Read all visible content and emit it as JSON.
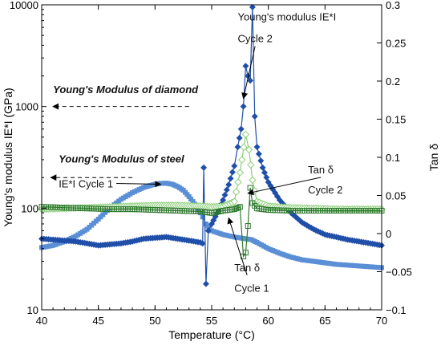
{
  "chart_data": {
    "type": "scatter",
    "xlabel": "Temperature (°C)",
    "ylabel_left": "Young's modulus IE*I (GPa)",
    "ylabel_right": "Tan δ",
    "xlim": [
      40,
      70
    ],
    "ylim_left": [
      10,
      10000
    ],
    "ylim_right": [
      -0.1,
      0.3
    ],
    "yscale_left": "log",
    "x_ticks": [
      40,
      45,
      50,
      55,
      60,
      65,
      70
    ],
    "y_ticks_left": [
      10,
      100,
      1000,
      10000
    ],
    "y_ticks_right": [
      -0.1,
      -0.05,
      0,
      0.05,
      0.1,
      0.15,
      0.2,
      0.25,
      0.3
    ],
    "x_tick_labels": [
      "40",
      "45",
      "50",
      "55",
      "60",
      "65",
      "70"
    ],
    "y_tick_labels_left": [
      "10",
      "100",
      "1000",
      "10000"
    ],
    "y_tick_labels_right": [
      "−0.1",
      "−0.05",
      "0",
      "0.05",
      "0.1",
      "0.15",
      "0.2",
      "0.25",
      "0.3"
    ],
    "colors": {
      "modulus_cycle1": "#5a8fd6",
      "modulus_cycle2": "#1f4fa8",
      "tan_cycle1": "#8ccf7a",
      "tan_cycle2": "#2f7a2f"
    },
    "series": [
      {
        "name": "IE*I Cycle 1",
        "axis": "left",
        "marker": "square",
        "x": [
          40,
          41,
          42,
          43,
          44,
          45,
          46,
          47,
          48,
          49,
          50,
          50.5,
          51,
          51.5,
          52,
          52.5,
          53,
          53.5,
          54,
          54.2,
          54.5,
          55,
          56,
          57,
          58,
          58.5,
          59,
          60,
          61,
          62,
          63,
          64,
          65,
          66,
          67,
          68,
          69,
          70
        ],
        "y": [
          41,
          43,
          47,
          53,
          62,
          78,
          100,
          122,
          142,
          160,
          172,
          175,
          176,
          172,
          163,
          150,
          130,
          110,
          90,
          82,
          70,
          60,
          55,
          52,
          50,
          49,
          46,
          40,
          36,
          33,
          31,
          30,
          29,
          28,
          27.5,
          27,
          26.5,
          26
        ]
      },
      {
        "name": "Young's modulus IE*I Cycle 2",
        "axis": "left",
        "marker": "diamond",
        "x": [
          40,
          41,
          42,
          43,
          44,
          45,
          46,
          47,
          48,
          49,
          50,
          51,
          52,
          53,
          54,
          54.2,
          54.3,
          54.5,
          54.7,
          55,
          55.5,
          56,
          56.5,
          57,
          57.3,
          57.6,
          57.8,
          58,
          58.2,
          58.4,
          58.6,
          58.8,
          59,
          59.5,
          60,
          61,
          62,
          63,
          64,
          65,
          66,
          67,
          68,
          69,
          70
        ],
        "y": [
          50,
          49,
          48,
          47,
          45,
          43,
          44,
          45,
          47,
          50,
          51,
          52,
          50,
          48,
          46,
          45,
          250,
          18,
          60,
          70,
          90,
          120,
          170,
          260,
          400,
          600,
          1000,
          2500,
          2000,
          1800,
          9500,
          800,
          400,
          250,
          180,
          120,
          90,
          72,
          62,
          55,
          52,
          49,
          47,
          45,
          43
        ]
      },
      {
        "name": "Tan δ Cycle 1",
        "axis": "right",
        "marker": "diamond-open",
        "x": [
          40,
          42,
          44,
          46,
          48,
          50,
          52,
          54,
          55,
          56,
          57,
          57.5,
          58,
          58.3,
          58.6,
          59,
          60,
          62,
          64,
          66,
          68,
          70
        ],
        "y": [
          0.032,
          0.033,
          0.034,
          0.035,
          0.036,
          0.037,
          0.037,
          0.036,
          0.035,
          0.036,
          0.042,
          0.08,
          0.13,
          0.11,
          0.07,
          0.042,
          0.036,
          0.034,
          0.033,
          0.032,
          0.032,
          0.032
        ]
      },
      {
        "name": "Tan δ Cycle 2",
        "axis": "right",
        "marker": "square-open",
        "x": [
          40,
          42,
          44,
          46,
          48,
          50,
          52,
          54,
          55,
          56,
          57,
          57.5,
          57.8,
          58,
          58.2,
          58.4,
          58.6,
          59,
          60,
          62,
          64,
          66,
          68,
          70
        ],
        "y": [
          0.035,
          0.034,
          0.033,
          0.032,
          0.032,
          0.031,
          0.03,
          0.029,
          0.027,
          0.03,
          0.032,
          0.035,
          -0.03,
          -0.025,
          0.01,
          0.06,
          0.04,
          0.033,
          0.031,
          0.03,
          0.03,
          0.03,
          0.03,
          0.03
        ]
      }
    ],
    "annotations": [
      {
        "id": "ym-cycle2-line1",
        "text": "Young's modulus IE*I",
        "style": "normal",
        "tx": 57.3,
        "ty_left": 7000,
        "arrow_to": null
      },
      {
        "id": "ym-cycle2-line2",
        "text": "Cycle 2",
        "style": "normal",
        "tx": 57.3,
        "ty_left": 4300,
        "arrow_to": {
          "x": 57.8,
          "y_left": 1200
        }
      },
      {
        "id": "ym-diamond",
        "text": "Young's Modulus of diamond",
        "style": "bold",
        "tx": 41,
        "ty_left": 1350,
        "arrow_from": {
          "x": 53,
          "y_left": 1000
        },
        "arrow_to": {
          "x": 41,
          "y_left": 1000
        }
      },
      {
        "id": "ym-steel",
        "text": "Young's Modulus of steel",
        "style": "bold",
        "tx": 41.5,
        "ty_left": 280,
        "arrow_from": {
          "x": 48,
          "y_left": 200
        },
        "arrow_to": {
          "x": 40.8,
          "y_left": 200
        }
      },
      {
        "id": "ie-cycle1",
        "text": "IE*I Cycle 1",
        "style": "normal",
        "tx": 41.5,
        "ty_left": 160,
        "arrow_to": {
          "x": 50.5,
          "y_left": 172
        }
      },
      {
        "id": "tan-cycle2-line1",
        "text": "Tan δ",
        "style": "normal",
        "tx": 63.5,
        "ty_left": 220,
        "arrow_to": {
          "x": 58.2,
          "y_left": 140
        }
      },
      {
        "id": "tan-cycle2-line2",
        "text": "Cycle 2",
        "style": "normal",
        "tx": 63.5,
        "ty_left": 140,
        "arrow_to": null
      },
      {
        "id": "tan-cycle1-line1",
        "text": "Tan δ",
        "style": "normal",
        "tx": 57,
        "ty_left": 24,
        "arrow_to": {
          "x": 56.5,
          "y_left": 80
        }
      },
      {
        "id": "tan-cycle1-line2",
        "text": "Cycle 1",
        "style": "normal",
        "tx": 57,
        "ty_left": 15,
        "arrow_to": null
      }
    ]
  }
}
